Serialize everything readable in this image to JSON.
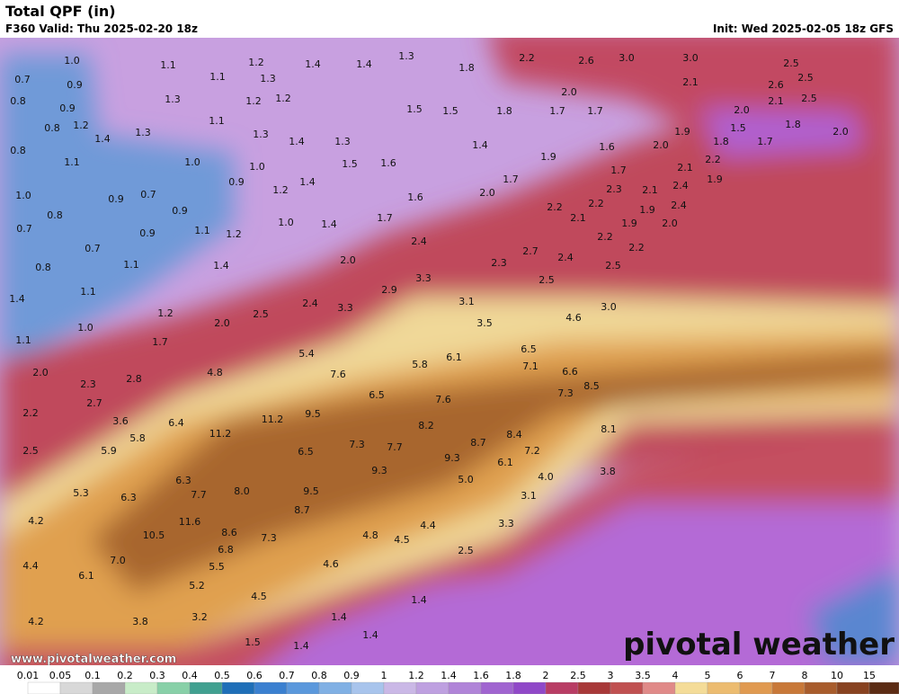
{
  "header": {
    "title": "Total QPF (in)",
    "valid": "F360 Valid: Thu 2025-02-20 18z",
    "init": "Init: Wed 2025-02-05 18z GFS"
  },
  "map": {
    "labels": [
      "1.0",
      "1.1",
      "1.2",
      "1.4",
      "1.4",
      "1.3",
      "1.8",
      "2.2",
      "2.6",
      "3.0",
      "3.0",
      "2.5",
      "2.5",
      "0.7",
      "0.9",
      "1.1",
      "1.3",
      "2.6",
      "2.1",
      "0.8",
      "0.9",
      "1.3",
      "1.2",
      "1.2",
      "2.0",
      "2.1",
      "2.5",
      "1.5",
      "1.5",
      "1.8",
      "1.7",
      "1.7",
      "2.0",
      "1.2",
      "0.8",
      "1.1",
      "1.8",
      "1.9",
      "1.5",
      "1.3",
      "1.4",
      "1.3",
      "1.4",
      "1.3",
      "1.4",
      "1.6",
      "2.0",
      "1.8",
      "1.7",
      "2.0",
      "0.8",
      "1.1",
      "1.0",
      "1.0",
      "1.5",
      "1.6",
      "1.9",
      "1.7",
      "2.1",
      "2.2",
      "0.9",
      "1.2",
      "1.4",
      "1.7",
      "1.9",
      "2.3",
      "2.1",
      "2.4",
      "1.0",
      "0.9",
      "0.7",
      "0.9",
      "1.6",
      "2.0",
      "2.2",
      "2.2",
      "1.9",
      "2.4",
      "0.8",
      "1.0",
      "1.4",
      "1.7",
      "2.1",
      "1.9",
      "2.0",
      "0.7",
      "0.9",
      "1.1",
      "1.2",
      "2.4",
      "2.2",
      "2.7",
      "2.2",
      "0.7",
      "2.4",
      "2.0",
      "0.8",
      "1.1",
      "1.4",
      "2.3",
      "2.5",
      "3.3",
      "2.5",
      "1.1",
      "2.9",
      "1.4",
      "2.4",
      "3.3",
      "3.1",
      "3.0",
      "1.2",
      "2.5",
      "4.6",
      "2.0",
      "3.5",
      "1.0",
      "1.1",
      "1.7",
      "6.5",
      "5.4",
      "6.1",
      "7.1",
      "5.8",
      "4.8",
      "7.6",
      "6.6",
      "2.0",
      "2.3",
      "2.8",
      "8.5",
      "7.3",
      "6.5",
      "7.6",
      "2.7",
      "2.2",
      "9.5",
      "11.2",
      "3.6",
      "6.4",
      "8.2",
      "8.1",
      "11.2",
      "5.8",
      "8.4",
      "2.5",
      "5.9",
      "8.7",
      "7.3",
      "7.7",
      "6.5",
      "7.2",
      "9.3",
      "6.1",
      "4.0",
      "3.8",
      "9.3",
      "5.0",
      "6.3",
      "5.3",
      "6.3",
      "7.7",
      "8.0",
      "9.5",
      "3.1",
      "8.7",
      "4.2",
      "11.6",
      "4.4",
      "3.3",
      "10.5",
      "8.6",
      "4.8",
      "4.5",
      "7.3",
      "6.8",
      "2.5",
      "7.0",
      "4.4",
      "5.5",
      "4.6",
      "6.1",
      "5.2",
      "4.5",
      "1.4",
      "4.2",
      "3.8",
      "3.2",
      "1.4",
      "1.5",
      "1.4",
      "1.4"
    ]
  },
  "colorbar": {
    "ticks": [
      "0.01",
      "0.05",
      "0.1",
      "0.2",
      "0.3",
      "0.4",
      "0.5",
      "0.6",
      "0.7",
      "0.8",
      "0.9",
      "1",
      "1.2",
      "1.4",
      "1.6",
      "1.8",
      "2",
      "2.5",
      "3",
      "3.5",
      "4",
      "5",
      "6",
      "7",
      "8",
      "10",
      "15"
    ],
    "colors": [
      "#ffffff",
      "#d8d8d8",
      "#a8a8a8",
      "#c8ecc8",
      "#88d0a8",
      "#40a090",
      "#1e6fb8",
      "#3a80d0",
      "#5a98dc",
      "#80b0e4",
      "#a8c4ec",
      "#cab8e6",
      "#bea0e0",
      "#b084d8",
      "#a064d0",
      "#9048c8",
      "#b83c64",
      "#a83838",
      "#c05050",
      "#e08a88",
      "#f4dc98",
      "#ecbc70",
      "#e09a50",
      "#c87838",
      "#a85c2c",
      "#884220",
      "#5c2c14"
    ]
  },
  "footer": {
    "url": "www.pivotalweather.com",
    "brand": "pivotal weather"
  }
}
